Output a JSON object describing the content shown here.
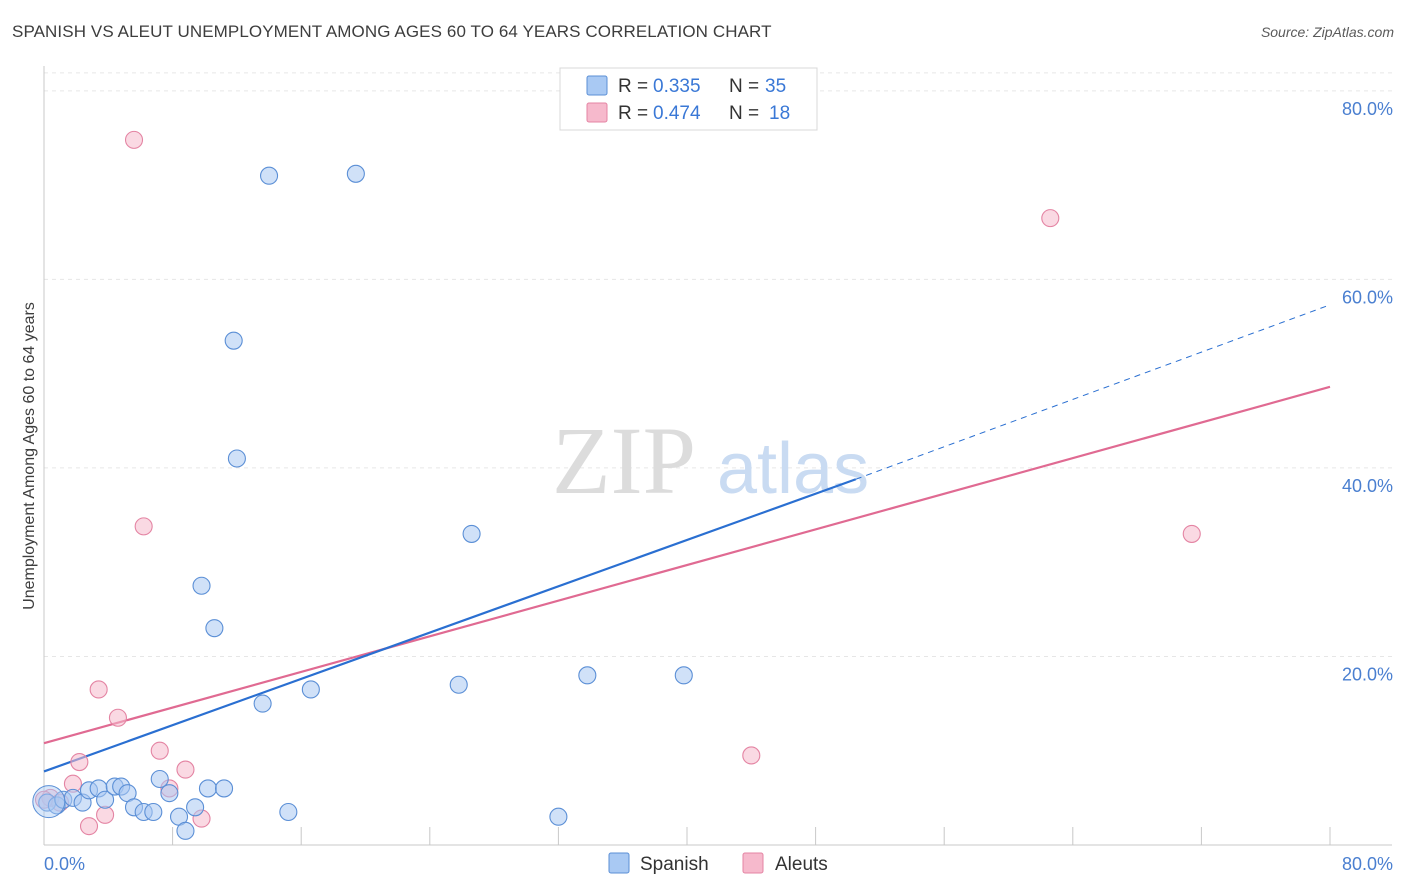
{
  "title": "SPANISH VS ALEUT UNEMPLOYMENT AMONG AGES 60 TO 64 YEARS CORRELATION CHART",
  "source": "Source: ZipAtlas.com",
  "watermark": {
    "zip": "ZIP",
    "atlas": "atlas"
  },
  "colors": {
    "spanish_fill": "#a9c9f3",
    "spanish_stroke": "#5b8fd6",
    "spanish_line": "#2a6fd1",
    "aleut_fill": "#f6b9cc",
    "aleut_stroke": "#e484a3",
    "aleut_line": "#e06a92",
    "tick": "#4a7fd0",
    "grid": "#e6e6e6"
  },
  "legend": {
    "rows": [
      {
        "r_label": "R =",
        "r_value": "0.335",
        "n_label": "N =",
        "n_value": "35"
      },
      {
        "r_label": "R =",
        "r_value": "0.474",
        "n_label": "N =",
        "n_value": "18"
      }
    ]
  },
  "bottom_legend": [
    "Spanish",
    "Aleuts"
  ],
  "chart_data": {
    "type": "scatter",
    "title": "SPANISH VS ALEUT UNEMPLOYMENT AMONG AGES 60 TO 64 YEARS CORRELATION CHART",
    "xlabel": "",
    "ylabel": "Unemployment Among Ages 60 to 64 years",
    "xlim": [
      0,
      80
    ],
    "ylim": [
      0,
      82
    ],
    "x_tick_labels": [
      "0.0%",
      "80.0%"
    ],
    "y_ticks": [
      20,
      40,
      60,
      80
    ],
    "y_tick_labels": [
      "20.0%",
      "40.0%",
      "60.0%",
      "80.0%"
    ],
    "grid": true,
    "legend_position": "top-center",
    "series": [
      {
        "name": "Spanish",
        "r": 0.335,
        "n": 35,
        "points": [
          [
            0.2,
            4.5
          ],
          [
            0.8,
            4.2
          ],
          [
            1.2,
            4.8
          ],
          [
            1.8,
            5.0
          ],
          [
            2.4,
            4.5
          ],
          [
            2.8,
            5.8
          ],
          [
            3.4,
            6.0
          ],
          [
            3.8,
            4.8
          ],
          [
            4.4,
            6.2
          ],
          [
            4.8,
            6.2
          ],
          [
            5.2,
            5.5
          ],
          [
            5.6,
            4.0
          ],
          [
            6.2,
            3.5
          ],
          [
            6.8,
            3.5
          ],
          [
            7.2,
            7.0
          ],
          [
            7.8,
            5.5
          ],
          [
            8.4,
            3.0
          ],
          [
            8.8,
            1.5
          ],
          [
            9.4,
            4.0
          ],
          [
            9.8,
            27.5
          ],
          [
            10.2,
            6.0
          ],
          [
            10.6,
            23.0
          ],
          [
            11.2,
            6.0
          ],
          [
            11.8,
            53.5
          ],
          [
            12.0,
            41.0
          ],
          [
            13.6,
            15.0
          ],
          [
            14.0,
            71.0
          ],
          [
            15.2,
            3.5
          ],
          [
            16.6,
            16.5
          ],
          [
            19.4,
            71.2
          ],
          [
            25.8,
            17.0
          ],
          [
            26.6,
            33.0
          ],
          [
            32.0,
            3.0
          ],
          [
            33.8,
            18.0
          ],
          [
            39.8,
            18.0
          ]
        ],
        "trend": {
          "x": [
            0,
            50.5
          ],
          "y": [
            7.8,
            38.8
          ],
          "dashed_to": [
            80,
            57.3
          ]
        }
      },
      {
        "name": "Aleuts",
        "r": 0.474,
        "n": 18,
        "points": [
          [
            0.4,
            5.0
          ],
          [
            1.0,
            4.5
          ],
          [
            1.8,
            6.5
          ],
          [
            2.2,
            8.8
          ],
          [
            2.8,
            2.0
          ],
          [
            3.4,
            16.5
          ],
          [
            3.8,
            3.2
          ],
          [
            4.6,
            13.5
          ],
          [
            5.6,
            74.8
          ],
          [
            6.2,
            33.8
          ],
          [
            7.2,
            10.0
          ],
          [
            7.8,
            6.0
          ],
          [
            8.8,
            8.0
          ],
          [
            9.8,
            2.8
          ],
          [
            44.0,
            9.5
          ],
          [
            62.6,
            66.5
          ],
          [
            71.4,
            33.0
          ],
          [
            0.0,
            4.8
          ]
        ],
        "trend": {
          "x": [
            0,
            80
          ],
          "y": [
            10.8,
            48.6
          ]
        }
      }
    ]
  }
}
